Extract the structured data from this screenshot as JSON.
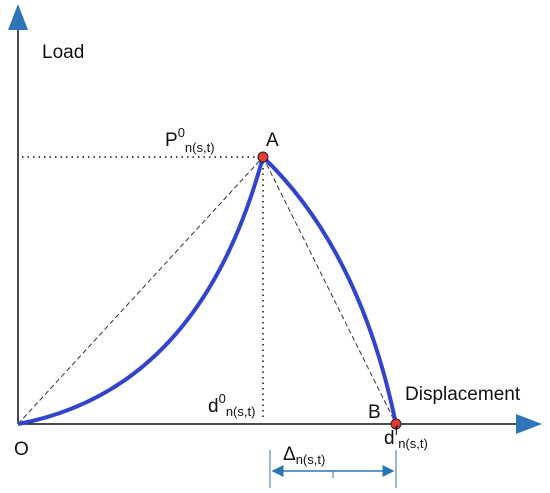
{
  "labels": {
    "y_axis": "Load",
    "x_axis": "Displacement",
    "origin": "O",
    "point_a": "A",
    "point_b": "B",
    "peak_load": {
      "base": "P",
      "sup": "0",
      "sub": "n(s,t)"
    },
    "peak_displacement": {
      "base": "d",
      "sup": "0",
      "sub": "n(s,t)"
    },
    "final_displacement": {
      "base": "d",
      "sup": "f",
      "sub": "n(s,t)"
    },
    "delta": {
      "base": "Δ",
      "sub": "n(s,t)"
    }
  }
}
